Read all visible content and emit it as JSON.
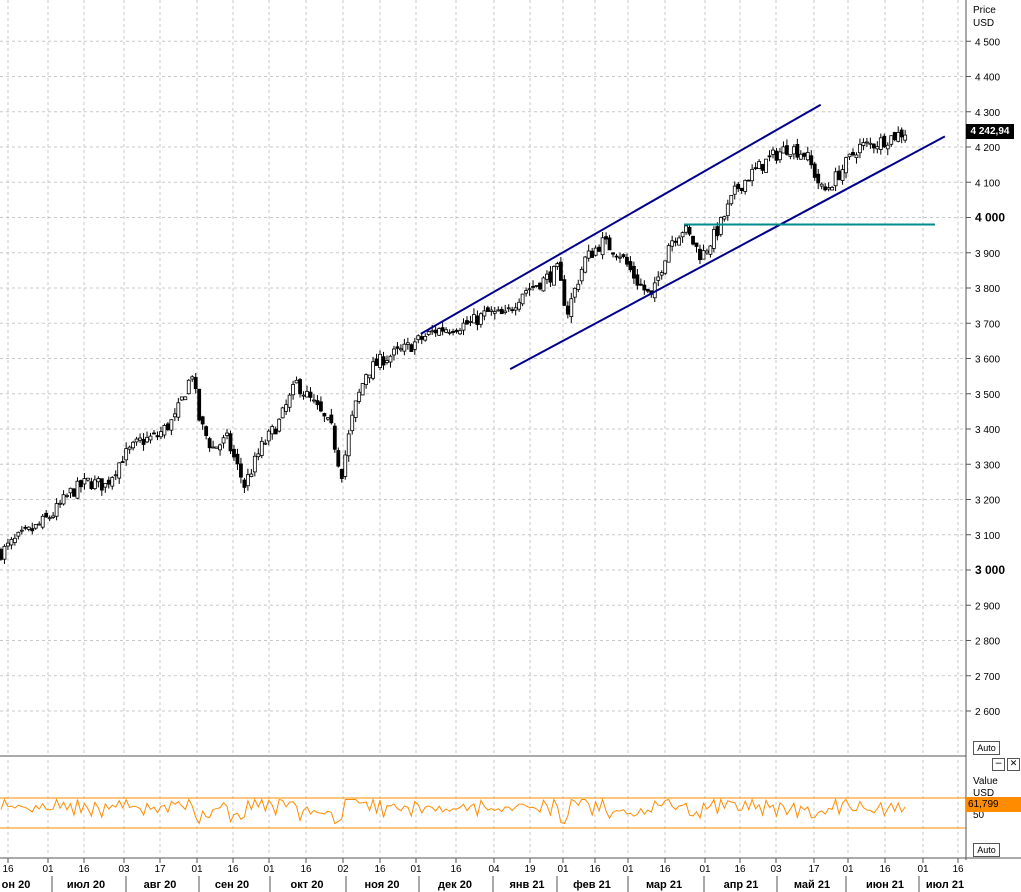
{
  "price_axis": {
    "title": "Price",
    "unit": "USD",
    "ticks": [
      "4 500",
      "4 400",
      "4 300",
      "4 200",
      "4 100",
      "4 000",
      "3 900",
      "3 800",
      "3 700",
      "3 600",
      "3 500",
      "3 400",
      "3 300",
      "3 200",
      "3 100",
      "3 000",
      "2 900",
      "2 800",
      "2 700",
      "2 600"
    ],
    "bold_ticks": [
      "4 000",
      "3 000"
    ]
  },
  "last_price": "4 242,94",
  "auto_label_main": "Auto",
  "auto_label_osc": "Auto",
  "osc_axis": {
    "title": "Value",
    "unit": "USD",
    "tick": "50",
    "current": "61,799"
  },
  "date_axis": {
    "days": [
      "16",
      "01",
      "16",
      "03",
      "17",
      "01",
      "16",
      "01",
      "16",
      "02",
      "16",
      "01",
      "16",
      "04",
      "19",
      "01",
      "16",
      "01",
      "16",
      "01",
      "16",
      "03",
      "17",
      "01",
      "16",
      "01",
      "16"
    ],
    "months": [
      "он 20",
      "июл 20",
      "авг 20",
      "сен 20",
      "окт 20",
      "ноя 20",
      "дек 20",
      "янв 21",
      "фев 21",
      "мар 21",
      "апр 21",
      "май 21",
      "июн 21",
      "июл 21"
    ]
  },
  "colors": {
    "channel": "#00008b",
    "support": "#008b8b",
    "oscillator": "#ff8c00",
    "grid": "#c8c8c8"
  },
  "chart_data": {
    "type": "candlestick",
    "title": "",
    "ylabel": "Price USD",
    "ylim": [
      2500,
      4560
    ],
    "grid": true,
    "series_anchors": [
      [
        "2020-06-15",
        3050
      ],
      [
        "2020-06-22",
        3090
      ],
      [
        "2020-06-29",
        3120
      ],
      [
        "2020-07-06",
        3160
      ],
      [
        "2020-07-13",
        3220
      ],
      [
        "2020-07-20",
        3250
      ],
      [
        "2020-07-27",
        3240
      ],
      [
        "2020-08-03",
        3320
      ],
      [
        "2020-08-10",
        3365
      ],
      [
        "2020-08-17",
        3380
      ],
      [
        "2020-08-24",
        3430
      ],
      [
        "2020-08-31",
        3560
      ],
      [
        "2020-09-03",
        3420
      ],
      [
        "2020-09-08",
        3345
      ],
      [
        "2020-09-14",
        3370
      ],
      [
        "2020-09-21",
        3240
      ],
      [
        "2020-09-28",
        3350
      ],
      [
        "2020-10-05",
        3420
      ],
      [
        "2020-10-12",
        3530
      ],
      [
        "2020-10-19",
        3470
      ],
      [
        "2020-10-26",
        3400
      ],
      [
        "2020-10-30",
        3270
      ],
      [
        "2020-11-04",
        3450
      ],
      [
        "2020-11-09",
        3560
      ],
      [
        "2020-11-16",
        3600
      ],
      [
        "2020-11-23",
        3620
      ],
      [
        "2020-11-30",
        3650
      ],
      [
        "2020-12-07",
        3680
      ],
      [
        "2020-12-14",
        3690
      ],
      [
        "2020-12-21",
        3700
      ],
      [
        "2020-12-28",
        3730
      ],
      [
        "2021-01-04",
        3720
      ],
      [
        "2021-01-11",
        3790
      ],
      [
        "2021-01-19",
        3820
      ],
      [
        "2021-01-25",
        3850
      ],
      [
        "2021-01-29",
        3730
      ],
      [
        "2021-02-05",
        3880
      ],
      [
        "2021-02-12",
        3930
      ],
      [
        "2021-02-19",
        3900
      ],
      [
        "2021-02-26",
        3820
      ],
      [
        "2021-03-04",
        3770
      ],
      [
        "2021-03-11",
        3930
      ],
      [
        "2021-03-17",
        3970
      ],
      [
        "2021-03-24",
        3890
      ],
      [
        "2021-03-31",
        3970
      ],
      [
        "2021-04-07",
        4080
      ],
      [
        "2021-04-14",
        4130
      ],
      [
        "2021-04-21",
        4170
      ],
      [
        "2021-04-28",
        4200
      ],
      [
        "2021-05-05",
        4180
      ],
      [
        "2021-05-12",
        4070
      ],
      [
        "2021-05-19",
        4130
      ],
      [
        "2021-05-26",
        4200
      ],
      [
        "2021-06-02",
        4210
      ],
      [
        "2021-06-09",
        4230
      ],
      [
        "2021-06-14",
        4243
      ]
    ],
    "last_value": 4242.94,
    "upper_channel": [
      [
        "2020-12-01",
        3670
      ],
      [
        "2021-05-11",
        4320
      ]
    ],
    "lower_channel": [
      [
        "2021-01-06",
        3570
      ],
      [
        "2021-06-30",
        4230
      ]
    ],
    "horizontal_line": {
      "from": "2021-03-17",
      "to": "2021-06-26",
      "value": 3980
    },
    "oscillator": {
      "name": "Value",
      "current": 61.799,
      "levels": [
        70,
        30
      ],
      "label": "50"
    }
  }
}
